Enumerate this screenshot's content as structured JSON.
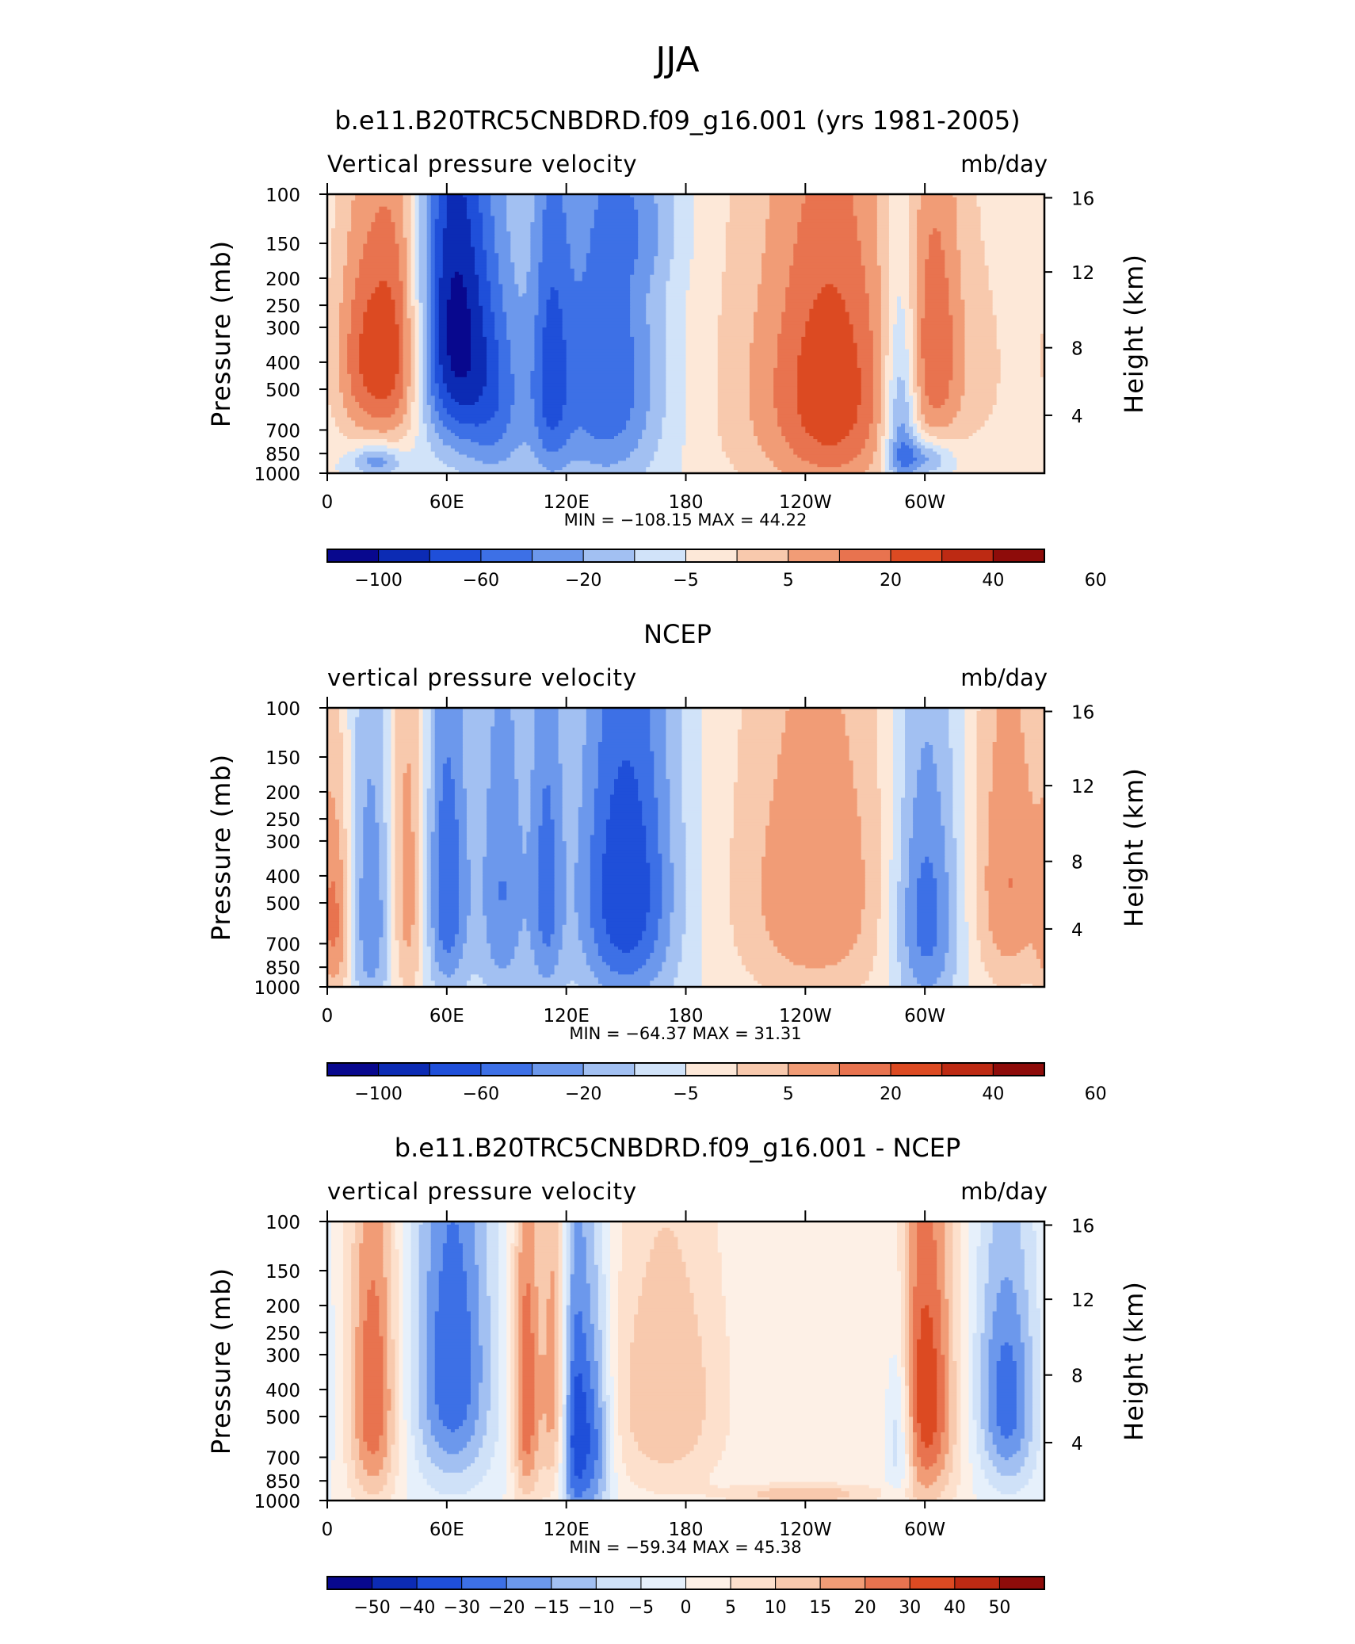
{
  "page": {
    "super_title": "JJA"
  },
  "palette": {
    "main": [
      "#08088e",
      "#0c2bb4",
      "#1f4fd9",
      "#3d70e6",
      "#6c98ec",
      "#a2c0f2",
      "#d1e3f9",
      "#fde8d8",
      "#f8c9ad",
      "#f19c76",
      "#e8734f",
      "#dc4a22",
      "#bd2a13",
      "#8e0c0a"
    ],
    "diff": [
      "#08088e",
      "#0c2bb4",
      "#1f4fd9",
      "#3d70e6",
      "#6c98ec",
      "#a2c0f2",
      "#cfe1f8",
      "#e6f0fb",
      "#fdf0e6",
      "#fde0cc",
      "#f8c9ad",
      "#f19c76",
      "#e8734f",
      "#dc4a22",
      "#bd2a13",
      "#8e0c0a"
    ]
  },
  "chart_data": [
    {
      "type": "heatmap",
      "title": "b.e11.B20TRC5CNBDRD.f09_g16.001 (yrs 1981-2005)",
      "left_label": "Vertical pressure velocity",
      "right_label": "mb/day",
      "ylabel": "Pressure (mb)",
      "y2label": "Height (km)",
      "y_ticks": [
        "100",
        "150",
        "200",
        "250",
        "300",
        "400",
        "500",
        "700",
        "850",
        "1000"
      ],
      "y2_ticks": [
        "16",
        "12",
        "8",
        "4"
      ],
      "x_ticks": [
        "0",
        "60E",
        "120E",
        "180",
        "120W",
        "60W"
      ],
      "stats": "MIN = −108.15   MAX =   44.22",
      "colorbar_labels": [
        "−100",
        "−60",
        "−20",
        "−5",
        "5",
        "20",
        "40",
        "60"
      ],
      "palette": "main",
      "blobs": [
        {
          "lon": 20,
          "p": 380,
          "lw": 12,
          "lp": 260,
          "v": 4
        },
        {
          "lon": 37,
          "p": 350,
          "lw": 9,
          "lp": 280,
          "v": 3
        },
        {
          "lon": 25,
          "p": 900,
          "lw": 9,
          "lp": 80,
          "v": -3
        },
        {
          "lon": 63,
          "p": 300,
          "lw": 13,
          "lp": 320,
          "v": -6
        },
        {
          "lon": 85,
          "p": 550,
          "lw": 12,
          "lp": 350,
          "v": -3
        },
        {
          "lon": 112,
          "p": 450,
          "lw": 7,
          "lp": 400,
          "v": -3
        },
        {
          "lon": 140,
          "p": 450,
          "lw": 20,
          "lp": 420,
          "v": -4
        },
        {
          "lon": 160,
          "p": 130,
          "lw": 14,
          "lp": 50,
          "v": -1
        },
        {
          "lon": 245,
          "p": 500,
          "lw": 35,
          "lp": 500,
          "v": 3
        },
        {
          "lon": 255,
          "p": 500,
          "lw": 18,
          "lp": 400,
          "v": 2
        },
        {
          "lon": 288,
          "p": 650,
          "lw": 6,
          "lp": 380,
          "v": -4
        },
        {
          "lon": 305,
          "p": 350,
          "lw": 10,
          "lp": 300,
          "v": 3
        },
        {
          "lon": 300,
          "p": 880,
          "lw": 10,
          "lp": 100,
          "v": -3
        },
        {
          "lon": 330,
          "p": 420,
          "lw": 15,
          "lp": 350,
          "v": 1
        }
      ]
    },
    {
      "type": "heatmap",
      "title": "NCEP",
      "left_label": "vertical pressure velocity",
      "right_label": "mb/day",
      "ylabel": "Pressure (mb)",
      "y2label": "Height (km)",
      "y_ticks": [
        "100",
        "150",
        "200",
        "250",
        "300",
        "400",
        "500",
        "700",
        "850",
        "1000"
      ],
      "y2_ticks": [
        "16",
        "12",
        "8",
        "4"
      ],
      "x_ticks": [
        "0",
        "60E",
        "120E",
        "180",
        "120W",
        "60W"
      ],
      "stats": "MIN =  −64.37   MAX =   31.31",
      "colorbar_labels": [
        "−100",
        "−60",
        "−20",
        "−5",
        "5",
        "20",
        "40",
        "60"
      ],
      "palette": "main",
      "blobs": [
        {
          "lon": 5,
          "p": 600,
          "lw": 6,
          "lp": 350,
          "v": 3
        },
        {
          "lon": 22,
          "p": 550,
          "lw": 9,
          "lp": 450,
          "v": -3
        },
        {
          "lon": 40,
          "p": 450,
          "lw": 7,
          "lp": 450,
          "v": 3
        },
        {
          "lon": 60,
          "p": 450,
          "lw": 8,
          "lp": 400,
          "v": -4
        },
        {
          "lon": 88,
          "p": 450,
          "lw": 9,
          "lp": 450,
          "v": -3
        },
        {
          "lon": 110,
          "p": 450,
          "lw": 6,
          "lp": 450,
          "v": -3
        },
        {
          "lon": 150,
          "p": 450,
          "lw": 18,
          "lp": 450,
          "v": -5
        },
        {
          "lon": 245,
          "p": 450,
          "lw": 30,
          "lp": 450,
          "v": 3
        },
        {
          "lon": 300,
          "p": 550,
          "lw": 12,
          "lp": 420,
          "v": -4
        },
        {
          "lon": 342,
          "p": 420,
          "lw": 13,
          "lp": 400,
          "v": 3
        }
      ]
    },
    {
      "type": "heatmap",
      "title": "b.e11.B20TRC5CNBDRD.f09_g16.001 - NCEP",
      "left_label": "vertical pressure velocity",
      "right_label": "mb/day",
      "ylabel": "Pressure (mb)",
      "y2label": "Height (km)",
      "y_ticks": [
        "100",
        "150",
        "200",
        "250",
        "300",
        "400",
        "500",
        "700",
        "850",
        "1000"
      ],
      "y2_ticks": [
        "16",
        "12",
        "8",
        "4"
      ],
      "x_ticks": [
        "0",
        "60E",
        "120E",
        "180",
        "120W",
        "60W"
      ],
      "stats": "MIN =  −59.34   MAX =   45.38",
      "colorbar_labels": [
        "−50",
        "−40",
        "−30",
        "−20",
        "−15",
        "−10",
        "−5",
        "0",
        "5",
        "10",
        "15",
        "20",
        "30",
        "40",
        "50"
      ],
      "palette": "diff",
      "blobs": [
        {
          "lon": 23,
          "p": 420,
          "lw": 9,
          "lp": 400,
          "v": 5
        },
        {
          "lon": 63,
          "p": 330,
          "lw": 14,
          "lp": 350,
          "v": -5
        },
        {
          "lon": 100,
          "p": 420,
          "lw": 5,
          "lp": 400,
          "v": 5
        },
        {
          "lon": 115,
          "p": 400,
          "lw": 5,
          "lp": 400,
          "v": 5
        },
        {
          "lon": 123,
          "p": 550,
          "lw": 6,
          "lp": 450,
          "v": -6
        },
        {
          "lon": 135,
          "p": 600,
          "lw": 6,
          "lp": 400,
          "v": -4
        },
        {
          "lon": 170,
          "p": 420,
          "lw": 22,
          "lp": 350,
          "v": 3
        },
        {
          "lon": 240,
          "p": 950,
          "lw": 25,
          "lp": 60,
          "v": 3
        },
        {
          "lon": 300,
          "p": 420,
          "lw": 12,
          "lp": 400,
          "v": 6
        },
        {
          "lon": 287,
          "p": 550,
          "lw": 5,
          "lp": 300,
          "v": -4
        },
        {
          "lon": 342,
          "p": 450,
          "lw": 10,
          "lp": 300,
          "v": -4
        },
        {
          "lon": 330,
          "p": 350,
          "lw": 14,
          "lp": 250,
          "v": -1
        }
      ]
    }
  ]
}
